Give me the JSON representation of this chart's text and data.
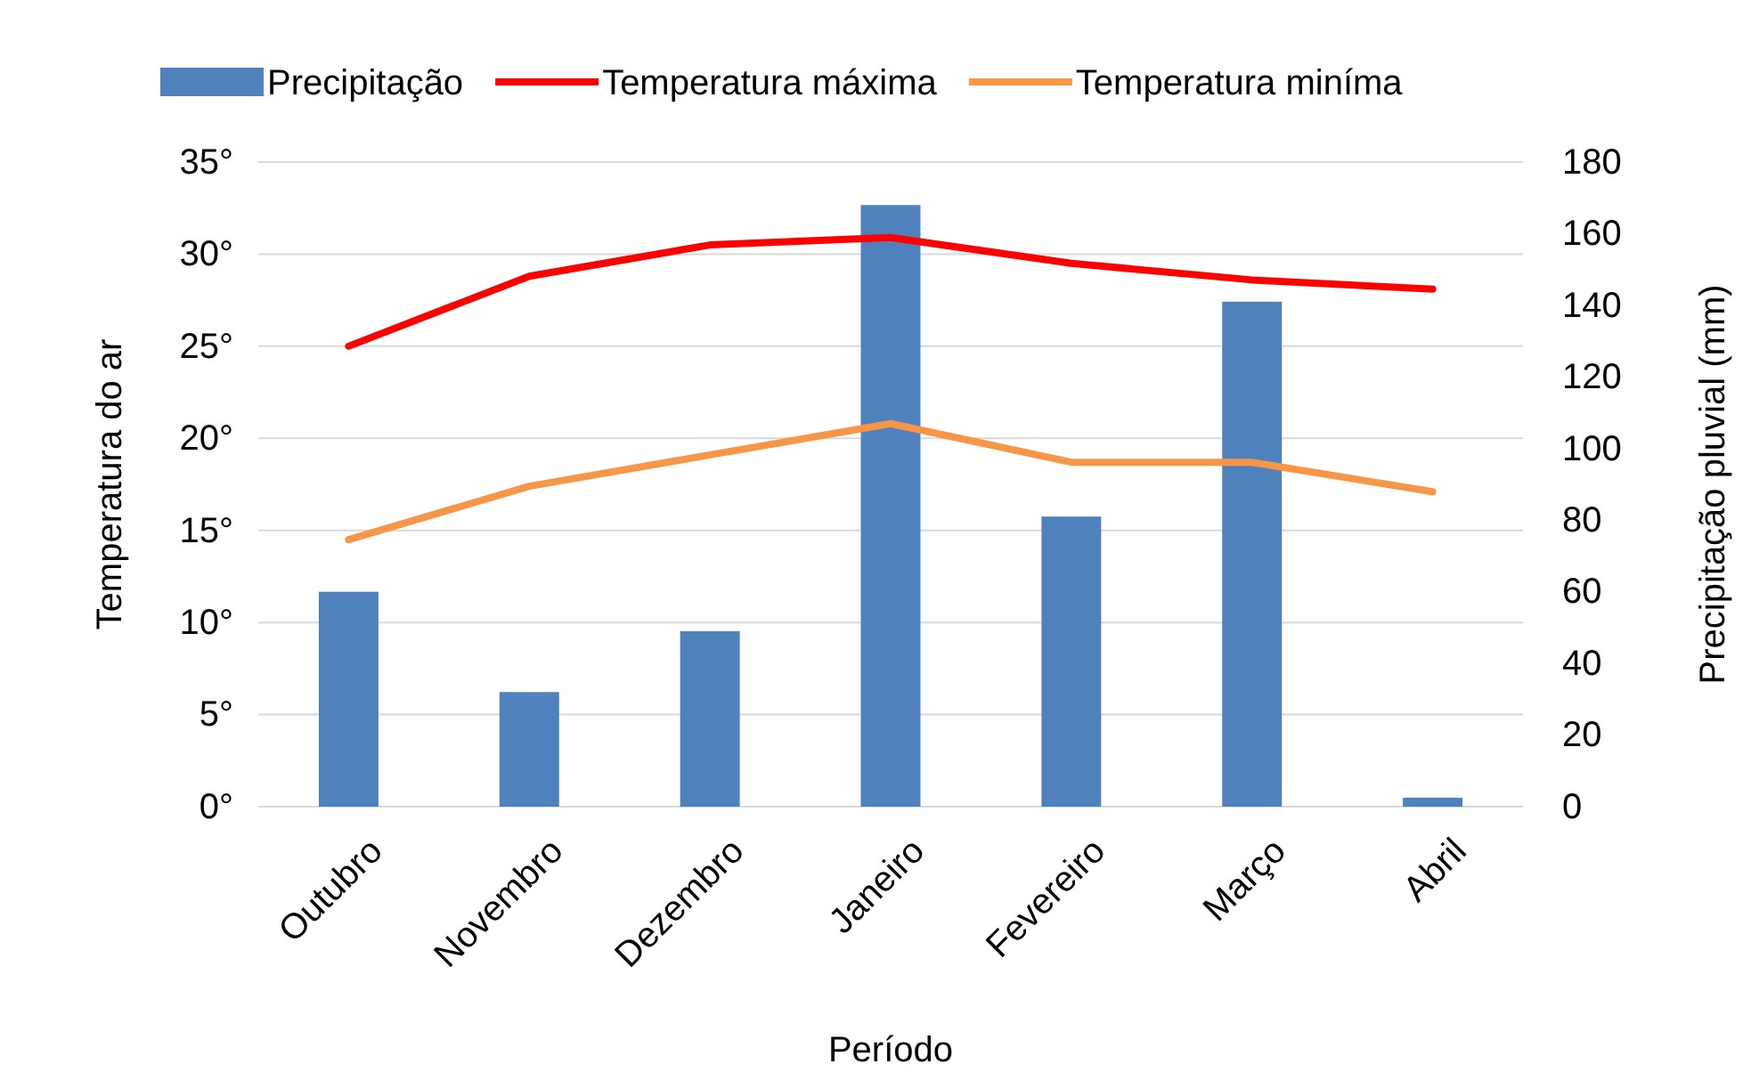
{
  "chart_data": {
    "type": "line",
    "xlabel": "Período",
    "ylabel": "Temperatura do ar",
    "y2label": "Precipitação pluvial (mm)",
    "categories": [
      "Outubro",
      "Novembro",
      "Dezembro",
      "Janeiro",
      "Fevereiro",
      "Março",
      "Abril"
    ],
    "series": [
      {
        "name": "Precipitação",
        "type": "bar",
        "axis": "y2",
        "color": "#4f81bd",
        "values": [
          60,
          32,
          49,
          168,
          81,
          141,
          2.5
        ]
      },
      {
        "name": "Temperatura máxima",
        "color": "#ff0000",
        "values": [
          25.0,
          28.8,
          30.5,
          30.9,
          29.5,
          28.6,
          28.1
        ]
      },
      {
        "name": "Temperatura miníma",
        "color": "#f79646",
        "values": [
          14.5,
          17.4,
          19.1,
          20.8,
          18.7,
          18.7,
          17.1
        ]
      }
    ],
    "ylim": [
      0,
      35
    ],
    "yticks": [
      {
        "value": 0,
        "label": "0°"
      },
      {
        "value": 5,
        "label": "5°"
      },
      {
        "value": 10,
        "label": "10°"
      },
      {
        "value": 15,
        "label": "15°"
      },
      {
        "value": 20,
        "label": "20°"
      },
      {
        "value": 25,
        "label": "25°"
      },
      {
        "value": 30,
        "label": "30°"
      },
      {
        "value": 35,
        "label": "35°"
      }
    ],
    "y2lim": [
      0,
      180
    ],
    "y2ticks": [
      0,
      20,
      40,
      60,
      80,
      100,
      120,
      140,
      160,
      180
    ],
    "grid": "y",
    "legend": "top",
    "marker": "none",
    "line_style": "solid"
  }
}
